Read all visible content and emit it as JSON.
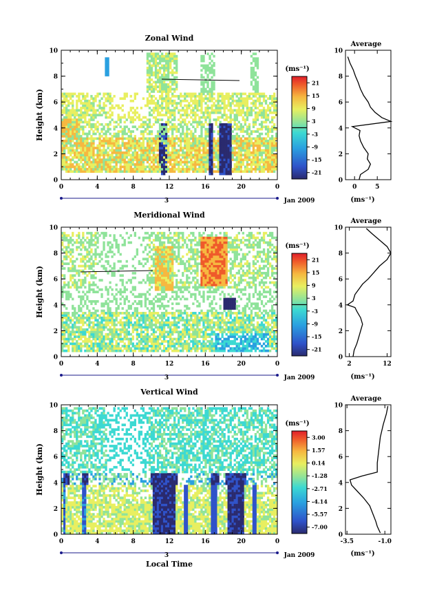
{
  "chart_data": [
    {
      "type": "heatmap",
      "title": "Zonal Wind",
      "ylabel": "Height (km)",
      "ylim": [
        0,
        10
      ],
      "yticks": [
        0,
        2,
        4,
        6,
        8,
        10
      ],
      "xticks": [
        "0",
        "4",
        "8",
        "12",
        "16",
        "20",
        "0"
      ],
      "day_label": "3",
      "date_label": "Jan 2009",
      "colorbar": {
        "unit": "(ms⁻¹)",
        "ticks": [
          "21",
          "15",
          "9",
          "3",
          "-3",
          "-9",
          "-15",
          "-21"
        ]
      },
      "average": {
        "title": "Average",
        "unit": "(ms⁻¹)",
        "xticks": [
          "0",
          "5"
        ],
        "xlim": [
          -2,
          8
        ],
        "yticks": [
          0,
          2,
          4,
          6,
          8,
          10
        ],
        "profile": [
          [
            1.0,
            0.0
          ],
          [
            1.3,
            0.4
          ],
          [
            3.0,
            0.8
          ],
          [
            3.5,
            1.2
          ],
          [
            2.8,
            1.6
          ],
          [
            3.0,
            2.0
          ],
          [
            2.0,
            2.5
          ],
          [
            1.3,
            3.0
          ],
          [
            1.0,
            3.4
          ],
          [
            1.2,
            3.8
          ],
          [
            -0.5,
            4.1
          ],
          [
            8.0,
            4.5
          ],
          [
            6.0,
            4.8
          ],
          [
            4.5,
            5.2
          ],
          [
            3.5,
            5.6
          ],
          [
            3.0,
            6.0
          ],
          [
            2.0,
            6.5
          ],
          [
            1.3,
            7.0
          ],
          [
            0.8,
            7.5
          ],
          [
            0.2,
            8.0
          ],
          [
            -0.3,
            8.5
          ],
          [
            -1.0,
            9.0
          ],
          [
            -1.5,
            9.5
          ]
        ]
      }
    },
    {
      "type": "heatmap",
      "title": "Meridional Wind",
      "ylabel": "Height (km)",
      "ylim": [
        0,
        10
      ],
      "yticks": [
        0,
        2,
        4,
        6,
        8,
        10
      ],
      "xticks": [
        "0",
        "4",
        "8",
        "12",
        "16",
        "20",
        "0"
      ],
      "day_label": "3",
      "date_label": "Jan 2009",
      "colorbar": {
        "unit": "(ms⁻¹)",
        "ticks": [
          "21",
          "15",
          "9",
          "3",
          "-3",
          "-9",
          "-15",
          "-21"
        ]
      },
      "average": {
        "title": "Average",
        "unit": "(ms⁻¹)",
        "xticks": [
          "2",
          "12"
        ],
        "xlim": [
          1,
          13
        ],
        "yticks": [
          0,
          2,
          4,
          6,
          8,
          10
        ],
        "profile": [
          [
            3.0,
            0.0
          ],
          [
            3.3,
            0.5
          ],
          [
            4.0,
            1.0
          ],
          [
            4.5,
            1.5
          ],
          [
            5.0,
            2.0
          ],
          [
            5.5,
            2.5
          ],
          [
            5.0,
            3.0
          ],
          [
            4.0,
            3.5
          ],
          [
            3.5,
            3.8
          ],
          [
            1.5,
            4.0
          ],
          [
            3.0,
            4.3
          ],
          [
            3.5,
            4.8
          ],
          [
            4.5,
            5.2
          ],
          [
            5.5,
            5.6
          ],
          [
            7.0,
            6.0
          ],
          [
            8.5,
            6.5
          ],
          [
            10.0,
            7.0
          ],
          [
            12.0,
            7.5
          ],
          [
            13.0,
            8.0
          ],
          [
            12.0,
            8.5
          ],
          [
            10.0,
            9.0
          ],
          [
            8.0,
            9.5
          ],
          [
            6.5,
            9.9
          ]
        ]
      }
    },
    {
      "type": "heatmap",
      "title": "Vertical Wind",
      "xlabel": "Local Time",
      "ylabel": "Height (km)",
      "ylim": [
        0,
        10
      ],
      "yticks": [
        0,
        2,
        4,
        6,
        8,
        10
      ],
      "xticks": [
        "0",
        "4",
        "8",
        "12",
        "16",
        "20",
        "0"
      ],
      "day_label": "3",
      "date_label": "Jan 2009",
      "colorbar": {
        "unit": "(ms⁻¹)",
        "ticks": [
          "3.00",
          "1.57",
          "0.14",
          "-1.28",
          "-2.71",
          "-4.14",
          "-5.57",
          "-7.00"
        ]
      },
      "average": {
        "title": "Average",
        "unit": "(ms⁻¹)",
        "xticks": [
          "-3.5",
          "-1.0"
        ],
        "xlim": [
          -3.6,
          -0.6
        ],
        "yticks": [
          0,
          2,
          4,
          6,
          8,
          10
        ],
        "profile": [
          [
            -1.3,
            0.1
          ],
          [
            -1.5,
            0.6
          ],
          [
            -1.6,
            1.0
          ],
          [
            -1.8,
            1.6
          ],
          [
            -2.0,
            2.2
          ],
          [
            -2.4,
            2.8
          ],
          [
            -2.8,
            3.3
          ],
          [
            -3.2,
            3.8
          ],
          [
            -3.3,
            4.2
          ],
          [
            -2.5,
            4.5
          ],
          [
            -1.5,
            4.8
          ],
          [
            -1.5,
            5.5
          ],
          [
            -1.4,
            6.5
          ],
          [
            -1.3,
            7.5
          ],
          [
            -1.1,
            8.5
          ],
          [
            -0.9,
            9.3
          ],
          [
            -0.8,
            9.9
          ]
        ]
      }
    }
  ],
  "colors": {
    "scale": [
      "#2a2a6e",
      "#2f52c9",
      "#2aa0e0",
      "#3cd9d2",
      "#8fe39a",
      "#e8ef60",
      "#f6b840",
      "#ef5a2a",
      "#e01e2a"
    ]
  }
}
